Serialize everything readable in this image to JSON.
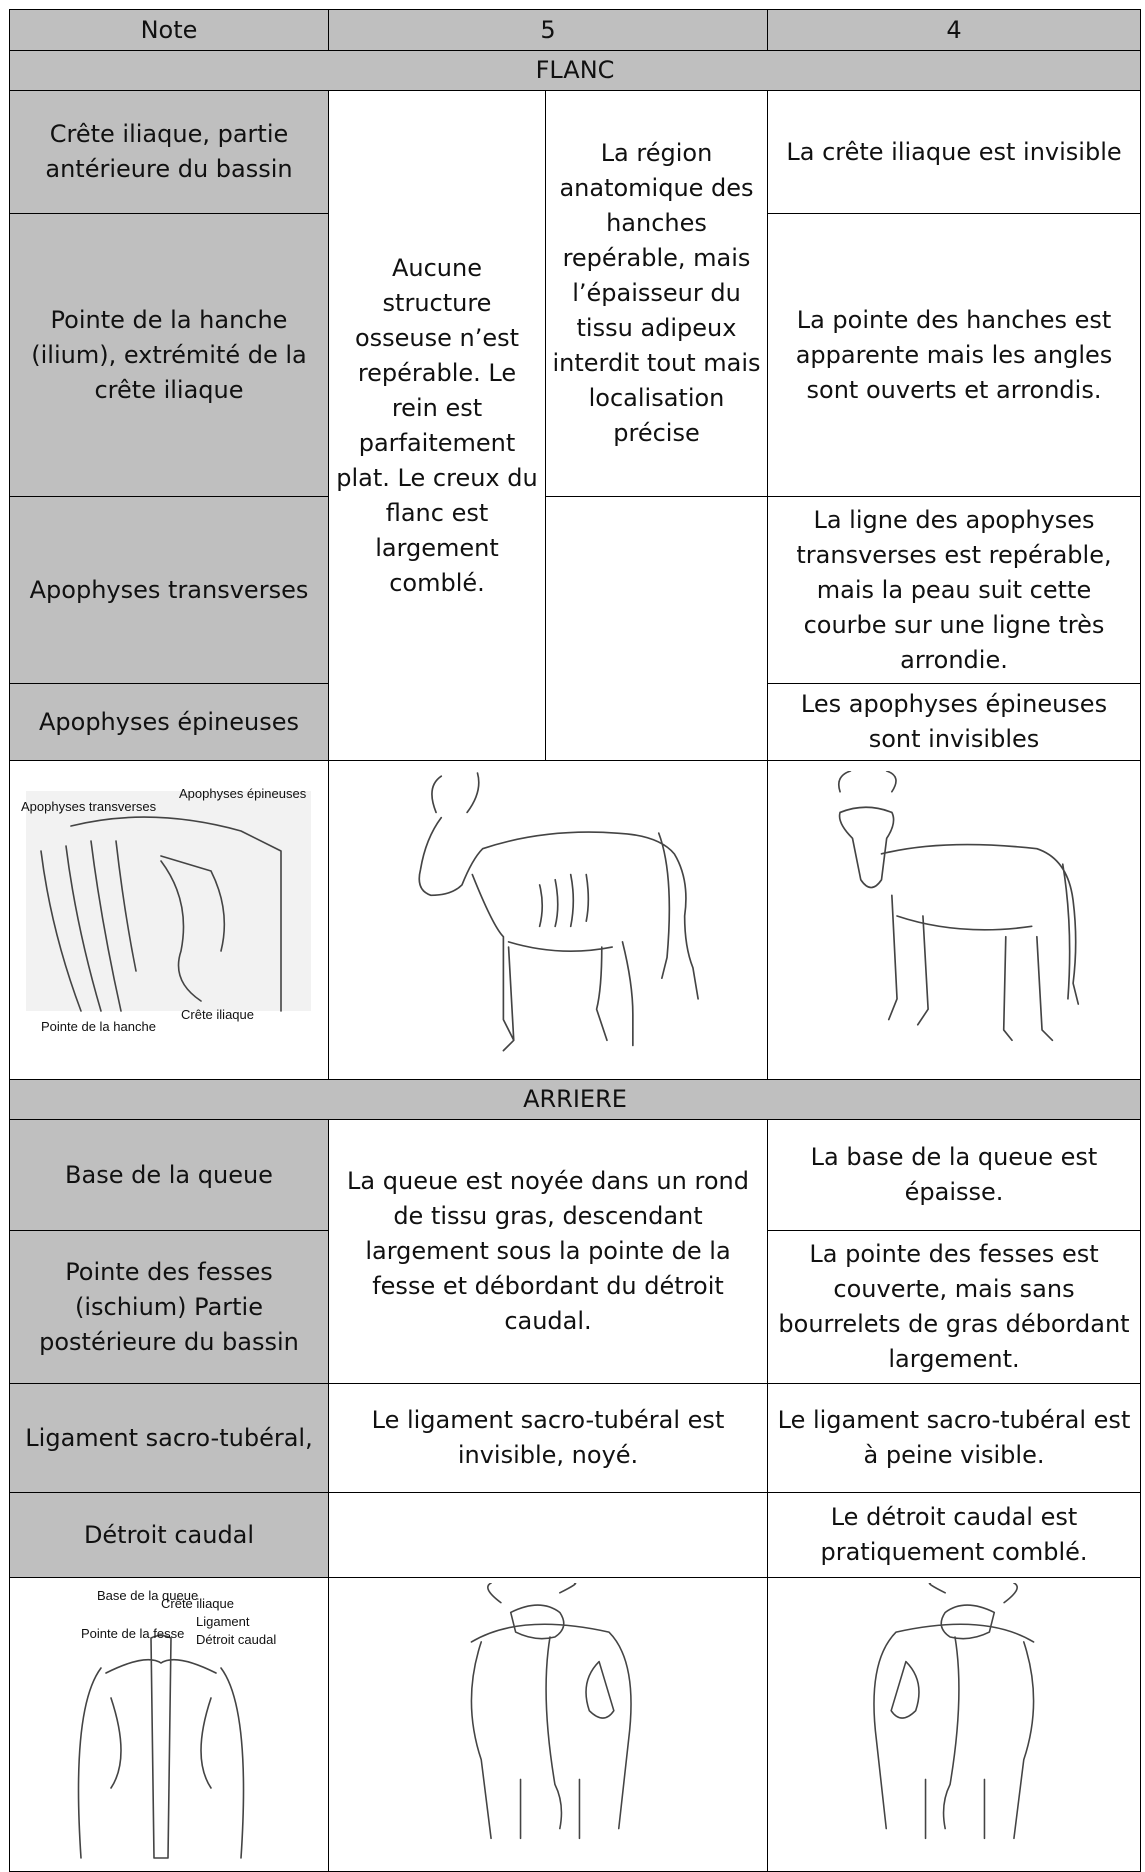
{
  "header": [
    "Note",
    "5",
    "4"
  ],
  "flanc": {
    "title": "FLANC",
    "rows": [
      "Crête iliaque, partie antérieure du bassin",
      "Pointe de la hanche (ilium), extrémité de la crête iliaque",
      "Apophyses transverses",
      "Apophyses épineuses"
    ],
    "note5_a": "Aucune structure osseuse n’est repérable. Le rein est parfaitement plat. Le creux du flanc est largement comblé.",
    "note5_b": "La région anatomique des hanches repérable, mais l’épaisseur du tissu adipeux interdit tout mais localisation précise",
    "note4": [
      "La crête iliaque est invisible",
      "La pointe des hanches est apparente mais les angles sont ouverts et arrondis.",
      "La ligne des apophyses transverses est repérable, mais la peau suit cette courbe sur une ligne très arrondie.",
      "Les apophyses épineuses sont invisibles"
    ],
    "image_labels": [
      "Apophyses transverses",
      "Apophyses épineuses",
      "Pointe de la hanche",
      "Crête iliaque"
    ]
  },
  "arriere": {
    "title": "ARRIERE",
    "rows": [
      "Base de la queue",
      "Pointe des fesses (ischium) Partie postérieure du bassin",
      "Ligament sacro-tubéral,",
      "Détroit caudal"
    ],
    "note5": [
      "La queue est noyée dans un rond de tissu gras, descendant largement sous la pointe de la fesse et débordant du détroit caudal.",
      "Le ligament sacro-tubéral est invisible, noyé."
    ],
    "note4": [
      "La base de la queue est épaisse.",
      "La pointe des fesses est couverte, mais sans bourrelets de gras débordant largement.",
      "Le ligament sacro-tubéral est à peine visible.",
      "Le détroit caudal est pratiquement comblé."
    ],
    "image_labels": [
      "Base de la queue",
      "Crête iliaque",
      "Ligament",
      "Pointe de la fesse",
      "Détroit caudal"
    ]
  }
}
